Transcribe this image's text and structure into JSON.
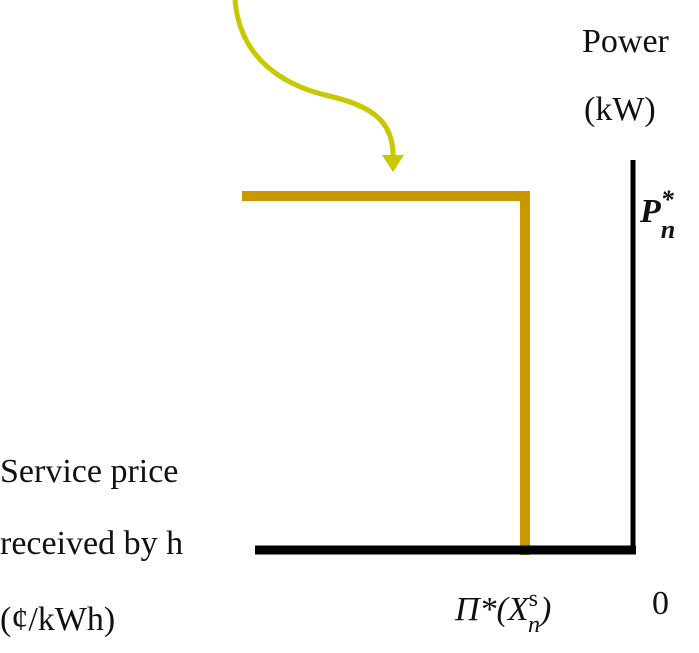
{
  "y_axis": {
    "lines": [
      "Power",
      "(kW)"
    ]
  },
  "x_axis": {
    "lines": [
      "Service price",
      "received by h",
      "(¢/kWh)"
    ]
  },
  "level_label": {
    "base": "P",
    "sup": "*",
    "sub": "n"
  },
  "price_label": {
    "prefix": "Π*(",
    "base": "X",
    "sup": "s",
    "sub": "n",
    "suffix": ")"
  },
  "origin_label": "0"
}
